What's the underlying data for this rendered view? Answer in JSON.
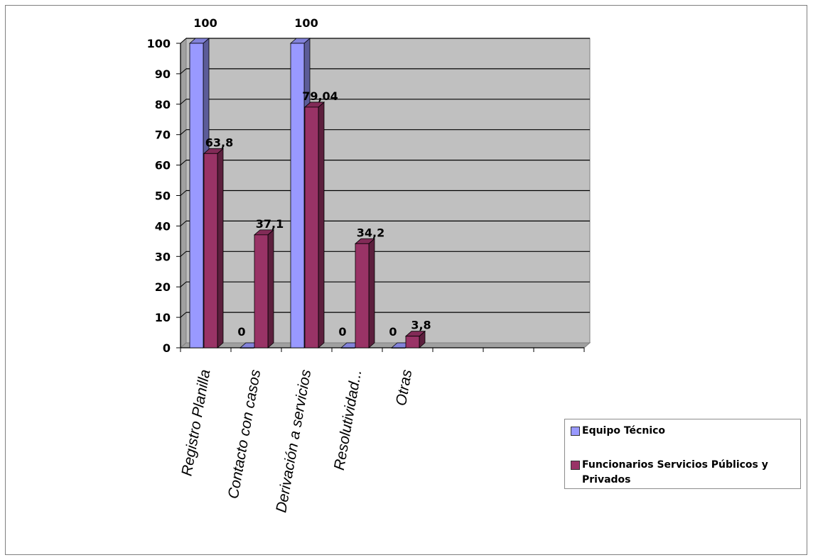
{
  "chart_data": {
    "type": "bar",
    "categories": [
      "Registro Planilla",
      "Contacto con casos",
      "Derivación a servicios",
      "Resolutividad...",
      "Otras",
      "",
      "",
      ""
    ],
    "series": [
      {
        "name": "Equipo Técnico",
        "values": [
          100,
          0,
          100,
          0,
          0,
          null,
          null,
          null
        ],
        "labels": [
          "100",
          "0",
          "100",
          "0",
          "0",
          "",
          "",
          ""
        ],
        "color": "#9999ff"
      },
      {
        "name": "Funcionarios Servicios Públicos y Privados",
        "values": [
          63.8,
          37.1,
          79.04,
          34.2,
          3.8,
          null,
          null,
          null
        ],
        "labels": [
          "63,8",
          "37,1",
          "79,04",
          "34,2",
          "3,8",
          "",
          "",
          ""
        ],
        "color": "#993366"
      }
    ],
    "yticks": [
      "0",
      "10",
      "20",
      "30",
      "40",
      "50",
      "60",
      "70",
      "80",
      "90",
      "100"
    ],
    "ylim": [
      0,
      100
    ],
    "grid": true,
    "plot_background": "#c0c0c0",
    "legend_position": "right"
  }
}
